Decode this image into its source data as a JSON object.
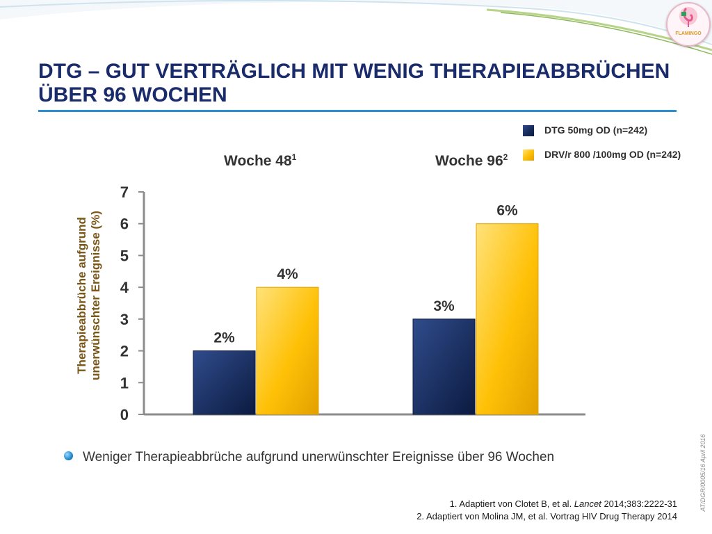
{
  "slide": {
    "title": "DTG – gut verträglich mit wenig Therapieabbrüchen über 96 Wochen",
    "logo_text": "FLAMINGO",
    "bullet": "Weniger Therapieabbrüche aufgrund unerwünschter Ereignisse über 96 Wochen",
    "references": [
      {
        "prefix": "1. Adaptiert von Clotet B, et al. ",
        "journal": "Lancet",
        "suffix": " 2014;383:2222-31"
      },
      {
        "text": "2. Adaptiert von Molina JM, et al. Vortrag HIV Drug Therapy 2014"
      }
    ],
    "side_code": "AT/DGR/0005/16  April 2016",
    "colors": {
      "accent": "#1a2b6b",
      "rule": "#2a8fd0",
      "dtg": "#1a2e5e",
      "drv": "#ffc107",
      "axis_label": "#7a5617"
    }
  },
  "chart_data": {
    "type": "bar",
    "categories": [
      "Woche 48",
      "Woche 96"
    ],
    "category_superscripts": [
      "1",
      "2"
    ],
    "series": [
      {
        "name": "DTG 50mg OD (n=242)",
        "values": [
          2,
          3
        ],
        "labels": [
          "2%",
          "3%"
        ],
        "color": "#1a2e5e"
      },
      {
        "name": "DRV/r 800 /100mg OD (n=242)",
        "values": [
          4,
          6
        ],
        "labels": [
          "4%",
          "6%"
        ],
        "color": "#ffc107"
      }
    ],
    "ylabel_lines": [
      "Therapieabbrüche aufgrund",
      "unerwünschter Ereignisse (%)"
    ],
    "ylim": [
      0,
      7
    ],
    "yticks": [
      0,
      1,
      2,
      3,
      4,
      5,
      6,
      7
    ],
    "grid": false,
    "legend": "top-right"
  }
}
